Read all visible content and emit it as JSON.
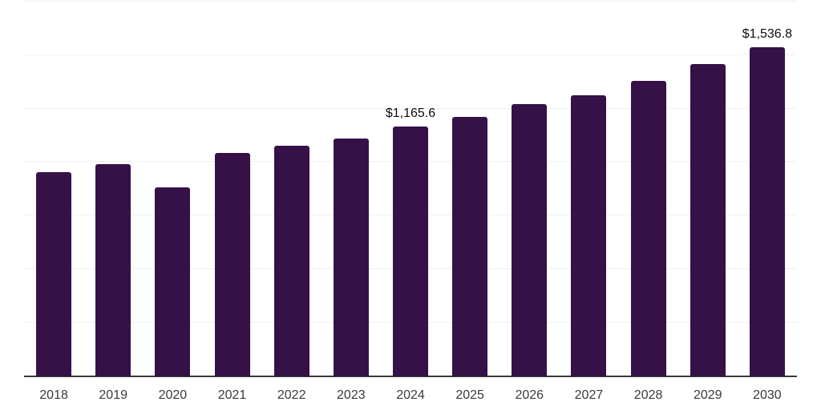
{
  "chart_data": {
    "type": "bar",
    "title": "",
    "xlabel": "",
    "ylabel": "",
    "categories": [
      "2018",
      "2019",
      "2020",
      "2021",
      "2022",
      "2023",
      "2024",
      "2025",
      "2026",
      "2027",
      "2028",
      "2029",
      "2030"
    ],
    "values": [
      953,
      989,
      881,
      1043,
      1075,
      1109,
      1165.6,
      1212,
      1270,
      1311,
      1381,
      1458,
      1536.8
    ],
    "data_labels": [
      null,
      null,
      null,
      null,
      null,
      null,
      "$1,165.6",
      null,
      null,
      null,
      null,
      null,
      "$1,536.8"
    ],
    "ylim": [
      0,
      1750
    ],
    "gridline_step": 250,
    "grid": true,
    "y_axis_tick_labels_visible": false,
    "legend": "none",
    "colors": {
      "bar": "#351148",
      "axis_line": "#3a3a3a",
      "gridline": "#f0f0f0",
      "data_label": "#0d0d0d",
      "tick_label": "#3a3a3a",
      "background": "#ffffff"
    }
  }
}
